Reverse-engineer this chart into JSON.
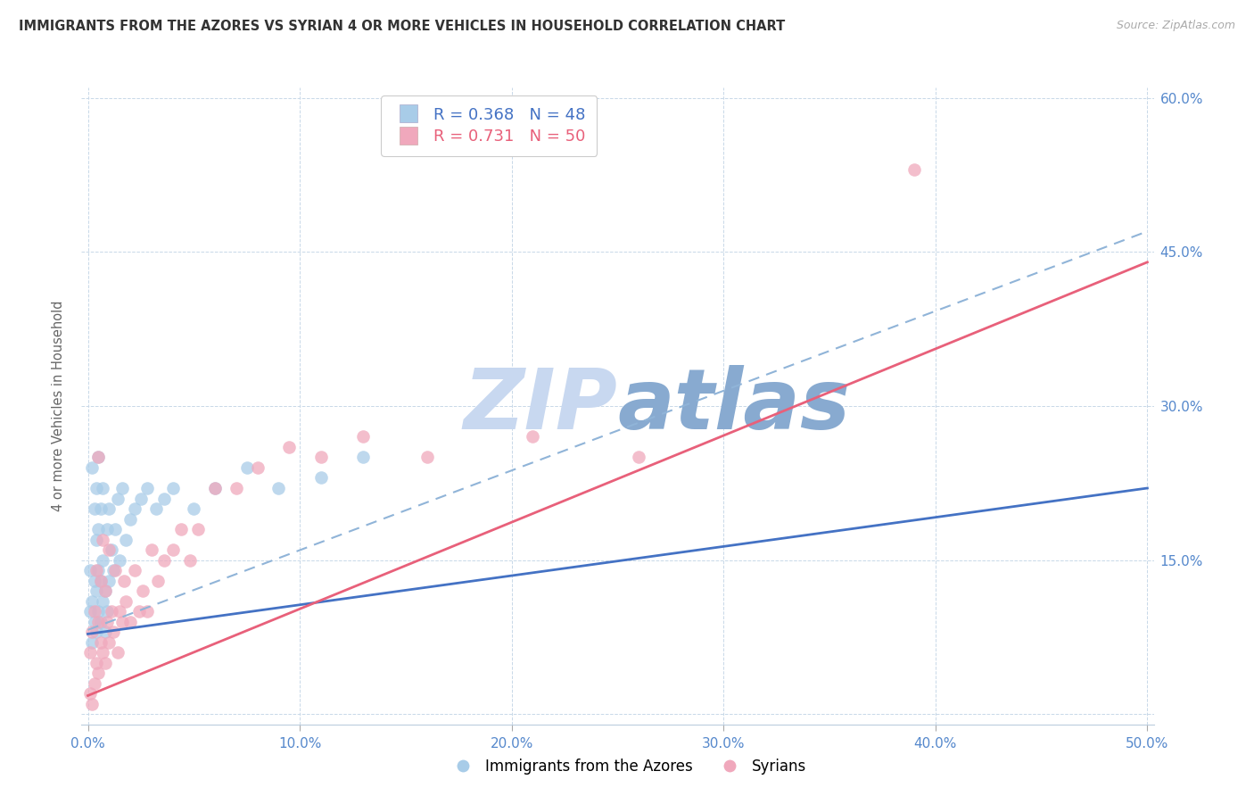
{
  "title": "IMMIGRANTS FROM THE AZORES VS SYRIAN 4 OR MORE VEHICLES IN HOUSEHOLD CORRELATION CHART",
  "source": "Source: ZipAtlas.com",
  "ylabel": "4 or more Vehicles in Household",
  "legend1_label": "Immigrants from the Azores",
  "legend2_label": "Syrians",
  "r1": 0.368,
  "n1": 48,
  "r2": 0.731,
  "n2": 50,
  "xlim": [
    -0.003,
    0.503
  ],
  "ylim": [
    -0.01,
    0.61
  ],
  "xtick_vals": [
    0.0,
    0.1,
    0.2,
    0.3,
    0.4,
    0.5
  ],
  "ytick_vals": [
    0.0,
    0.15,
    0.3,
    0.45,
    0.6
  ],
  "color_azores_scatter": "#a8cce8",
  "color_syrian_scatter": "#f0a8bc",
  "color_line_azores": "#4472c4",
  "color_line_syrian": "#e8607a",
  "color_dashed": "#90b4d8",
  "color_tick_labels": "#5588cc",
  "watermark_zip": "#c8d8f0",
  "watermark_atlas": "#88aad0",
  "blue_line_x0": 0.0,
  "blue_line_y0": 0.078,
  "blue_line_x1": 0.5,
  "blue_line_y1": 0.22,
  "pink_line_x0": 0.0,
  "pink_line_y0": 0.018,
  "pink_line_x1": 0.5,
  "pink_line_y1": 0.44,
  "dash_line_x0": 0.0,
  "dash_line_y0": 0.082,
  "dash_line_x1": 0.5,
  "dash_line_y1": 0.47,
  "azores_x": [
    0.001,
    0.001,
    0.002,
    0.002,
    0.002,
    0.003,
    0.003,
    0.003,
    0.004,
    0.004,
    0.004,
    0.004,
    0.005,
    0.005,
    0.005,
    0.005,
    0.006,
    0.006,
    0.006,
    0.007,
    0.007,
    0.007,
    0.008,
    0.008,
    0.009,
    0.009,
    0.01,
    0.01,
    0.011,
    0.012,
    0.013,
    0.014,
    0.015,
    0.016,
    0.018,
    0.02,
    0.022,
    0.025,
    0.028,
    0.032,
    0.036,
    0.04,
    0.05,
    0.06,
    0.075,
    0.09,
    0.11,
    0.13
  ],
  "azores_y": [
    0.1,
    0.14,
    0.07,
    0.11,
    0.24,
    0.09,
    0.13,
    0.2,
    0.08,
    0.12,
    0.17,
    0.22,
    0.1,
    0.14,
    0.18,
    0.25,
    0.09,
    0.13,
    0.2,
    0.11,
    0.15,
    0.22,
    0.08,
    0.12,
    0.1,
    0.18,
    0.13,
    0.2,
    0.16,
    0.14,
    0.18,
    0.21,
    0.15,
    0.22,
    0.17,
    0.19,
    0.2,
    0.21,
    0.22,
    0.2,
    0.21,
    0.22,
    0.2,
    0.22,
    0.24,
    0.22,
    0.23,
    0.25
  ],
  "syrian_x": [
    0.001,
    0.001,
    0.002,
    0.002,
    0.003,
    0.003,
    0.004,
    0.004,
    0.005,
    0.005,
    0.005,
    0.006,
    0.006,
    0.007,
    0.007,
    0.008,
    0.008,
    0.009,
    0.01,
    0.01,
    0.011,
    0.012,
    0.013,
    0.014,
    0.015,
    0.016,
    0.017,
    0.018,
    0.02,
    0.022,
    0.024,
    0.026,
    0.028,
    0.03,
    0.033,
    0.036,
    0.04,
    0.044,
    0.048,
    0.052,
    0.06,
    0.07,
    0.08,
    0.095,
    0.11,
    0.13,
    0.16,
    0.21,
    0.26,
    0.39
  ],
  "syrian_y": [
    0.02,
    0.06,
    0.01,
    0.08,
    0.03,
    0.1,
    0.05,
    0.14,
    0.04,
    0.09,
    0.25,
    0.07,
    0.13,
    0.06,
    0.17,
    0.05,
    0.12,
    0.09,
    0.07,
    0.16,
    0.1,
    0.08,
    0.14,
    0.06,
    0.1,
    0.09,
    0.13,
    0.11,
    0.09,
    0.14,
    0.1,
    0.12,
    0.1,
    0.16,
    0.13,
    0.15,
    0.16,
    0.18,
    0.15,
    0.18,
    0.22,
    0.22,
    0.24,
    0.26,
    0.25,
    0.27,
    0.25,
    0.27,
    0.25,
    0.53
  ]
}
